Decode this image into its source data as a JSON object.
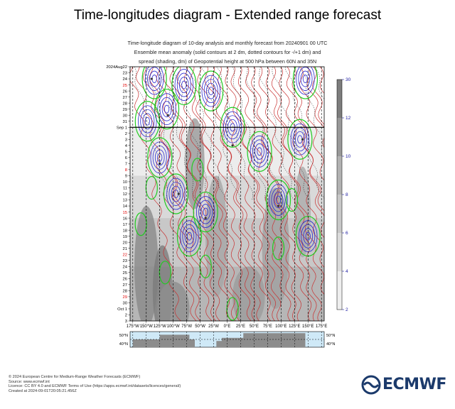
{
  "title": "Time-longitudes diagram - Extended range forecast",
  "subtitle_lines": [
    "Time-longitude diagram of 10-day analysis and monthly forecast from 20240901 00 UTC",
    "Ensemble mean anomaly (solid contours at 2 dm, dotted contours for -/+1 dm) and",
    "spread (shading, dm) of Geopotential height at 500 hPa between 60N and 35N"
  ],
  "footer_lines": [
    "© 2024 European Centre for Medium-Range Weather Forecasts (ECMWF)",
    "Source: www.ecmwf.int",
    "Licence: CC BY 4.0 and ECMWF Terms of Use (https://apps.ecmwf.int/datasets/licences/general/)",
    "Created at 2024-09-01T20:05:21.456Z"
  ],
  "logo_text": "ECMWF",
  "chart_data": {
    "type": "heatmap",
    "x_tick_labels": [
      "175°W",
      "150°W",
      "125°W",
      "100°W",
      "75°W",
      "50°W",
      "25°W",
      "0°E",
      "25°E",
      "50°E",
      "75°E",
      "100°E",
      "125°E",
      "150°E",
      "175°E"
    ],
    "x_ticks_deg": [
      -175,
      -150,
      -125,
      -100,
      -75,
      -50,
      -25,
      0,
      25,
      50,
      75,
      100,
      125,
      150,
      175
    ],
    "y_day_labels": [
      {
        "text": "2024Aug22",
        "red": false,
        "month": true
      },
      {
        "text": "23",
        "red": false
      },
      {
        "text": "24",
        "red": false
      },
      {
        "text": "25",
        "red": true
      },
      {
        "text": "26",
        "red": false
      },
      {
        "text": "27",
        "red": false
      },
      {
        "text": "28",
        "red": false
      },
      {
        "text": "29",
        "red": false
      },
      {
        "text": "30",
        "red": false
      },
      {
        "text": "31",
        "red": false
      },
      {
        "text": "Sep 1",
        "red": false,
        "sep": true
      },
      {
        "text": "2",
        "red": false
      },
      {
        "text": "3",
        "red": false
      },
      {
        "text": "4",
        "red": false
      },
      {
        "text": "5",
        "red": false
      },
      {
        "text": "6",
        "red": false
      },
      {
        "text": "7",
        "red": false
      },
      {
        "text": "8",
        "red": true
      },
      {
        "text": "9",
        "red": false
      },
      {
        "text": "10",
        "red": false
      },
      {
        "text": "11",
        "red": false
      },
      {
        "text": "12",
        "red": false
      },
      {
        "text": "13",
        "red": false
      },
      {
        "text": "14",
        "red": false
      },
      {
        "text": "15",
        "red": true
      },
      {
        "text": "16",
        "red": false
      },
      {
        "text": "17",
        "red": false
      },
      {
        "text": "18",
        "red": false
      },
      {
        "text": "19",
        "red": false
      },
      {
        "text": "20",
        "red": false
      },
      {
        "text": "21",
        "red": false
      },
      {
        "text": "22",
        "red": true
      },
      {
        "text": "23",
        "red": false
      },
      {
        "text": "24",
        "red": false
      },
      {
        "text": "25",
        "red": false
      },
      {
        "text": "26",
        "red": false
      },
      {
        "text": "27",
        "red": false
      },
      {
        "text": "28",
        "red": false
      },
      {
        "text": "29",
        "red": true
      },
      {
        "text": "30",
        "red": false
      },
      {
        "text": "Oct 1",
        "red": false
      },
      {
        "text": "2",
        "red": false
      },
      {
        "text": "3",
        "red": false
      }
    ],
    "colorbar_labels": [
      "2",
      "4",
      "6",
      "8",
      "10",
      "12",
      "30"
    ],
    "colorbar_values": [
      2,
      4,
      6,
      8,
      10,
      12,
      30
    ],
    "map_lat_labels": [
      "50°N",
      "40°N"
    ],
    "colors": {
      "positive_contour": "#c83232",
      "negative_contour": "#2b2bd0",
      "green_contour": "#22cc22",
      "dark_contour": "#222222",
      "map_sea": "#cfe9f7",
      "map_land": "#8c8c8c",
      "colorbar_label": "#1a1aa0",
      "weekend_red": "#e00000",
      "logo_blue": "#1b3a6b"
    }
  }
}
